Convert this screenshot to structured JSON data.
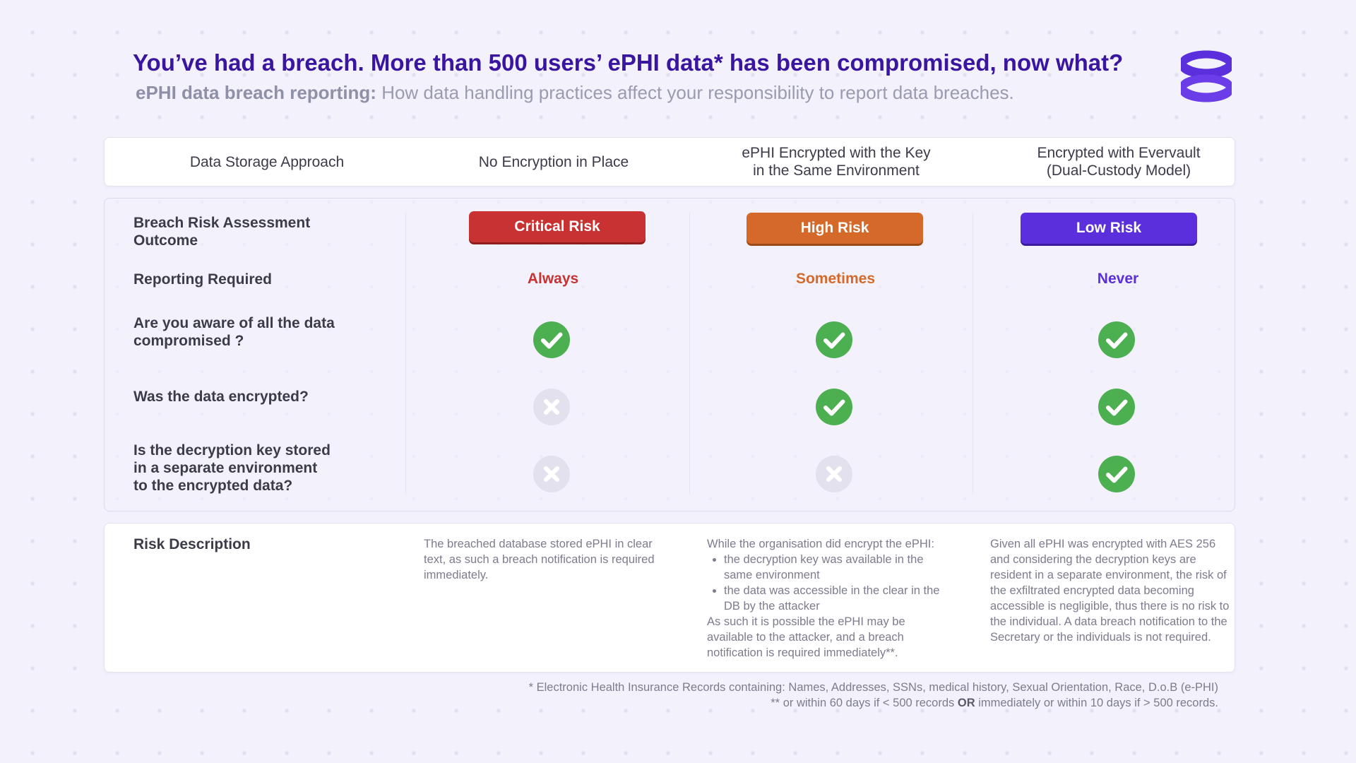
{
  "header": {
    "title": "You’ve had a breach.  More than 500 users’ ePHI data* has been compromised, now what?",
    "subtitle_bold": "ePHI data breach reporting:",
    "subtitle_rest": " How data handling practices affect your responsibility to report data breaches.",
    "logo_icon": "evervault-logo-icon"
  },
  "table": {
    "columns": [
      "Data Storage Approach",
      "No Encryption in Place",
      "ePHI Encrypted with the Key in the Same Environment",
      "Encrypted with Evervault (Dual-Custody Model)"
    ],
    "column_lines": [
      [
        "Data Storage Approach"
      ],
      [
        "No Encryption in Place"
      ],
      [
        "ePHI Encrypted with the Key",
        "in the Same Environment"
      ],
      [
        "Encrypted with Evervault",
        "(Dual-Custody Model)"
      ]
    ],
    "rows": {
      "risk_assessment": {
        "label_lines": [
          "Breach Risk Assessment",
          "Outcome"
        ],
        "values": [
          "Critical Risk",
          "High Risk",
          "Low Risk"
        ]
      },
      "reporting": {
        "label": "Reporting Required",
        "values": [
          "Always",
          "Sometimes",
          "Never"
        ]
      },
      "aware": {
        "label_lines": [
          "Are you aware of all the data",
          "compromised ?"
        ],
        "values": [
          "check-icon",
          "check-icon",
          "check-icon"
        ]
      },
      "encrypted": {
        "label": "Was the data encrypted?",
        "values": [
          "cross-icon",
          "check-icon",
          "check-icon"
        ]
      },
      "key_separate": {
        "label_lines": [
          "Is the decryption key stored",
          "in a separate environment",
          "to the encrypted data?"
        ],
        "values": [
          "cross-icon",
          "cross-icon",
          "check-icon"
        ]
      }
    },
    "colors": {
      "critical": "#c83232",
      "high": "#d4692a",
      "low": "#5b2fdc",
      "check": "#4caf50",
      "cross": "#e3e1ee"
    }
  },
  "risk_description": {
    "label": "Risk Description",
    "col1": "The breached database stored ePHI in clear text, as such a breach notification is required immediately.",
    "col2_intro": "While the organisation did encrypt the ePHI:",
    "col2_bullets": [
      "the decryption key was available in the same environment",
      "the data was accessible in the clear in the DB by the attacker"
    ],
    "col2_outro": "As such it is possible the ePHI may be available to the attacker, and a breach notification is required immediately**.",
    "col3": "Given all ePHI was encrypted with AES 256 and considering the decryption keys are resident in a separate environment, the risk of the exfiltrated encrypted data becoming accessible is negligible, thus there is no risk to the individual. A data breach notification to the Secretary or the individuals is not required."
  },
  "footnotes": {
    "line1": "* Electronic Health Insurance Records containing: Names, Addresses, SSNs, medical history, Sexual Orientation, Race, D.o.B (e-PHI)",
    "line2_a": "** or within 60 days if < 500 records ",
    "line2_bold": "OR",
    "line2_b": " immediately or within 10 days if > 500 records."
  }
}
